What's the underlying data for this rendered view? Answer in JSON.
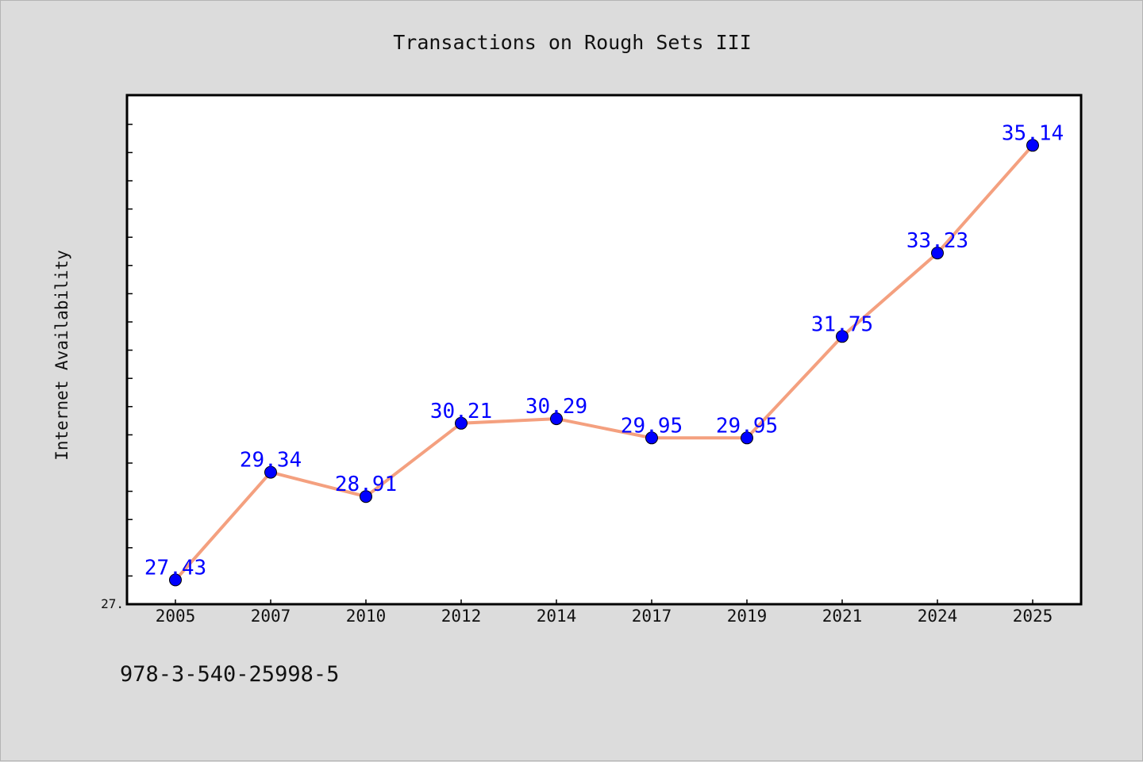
{
  "footer": {
    "isbn": "978-3-540-25998-5"
  },
  "colors": {
    "background": "#dcdcdc",
    "plot_background": "#ffffff",
    "line": "#f4a07f",
    "marker": "#0000ff",
    "data_label": "#0000ff"
  },
  "chart_data": {
    "type": "line",
    "title": "Transactions on Rough Sets III",
    "xlabel": "",
    "ylabel": "Internet Availability",
    "categories": [
      "2005",
      "2007",
      "2010",
      "2012",
      "2014",
      "2017",
      "2019",
      "2021",
      "2024",
      "2025"
    ],
    "series": [
      {
        "values": [
          27.43,
          29.34,
          28.91,
          30.21,
          30.29,
          29.95,
          29.95,
          31.75,
          33.23,
          35.14
        ],
        "labels": [
          "27.43",
          "29.34",
          "28.91",
          "30.21",
          "30.29",
          "29.95",
          "29.95",
          "31.75",
          "33.23",
          "35.14"
        ]
      }
    ],
    "ylim": [
      27,
      36.03
    ],
    "y_tick_labels": [
      "27."
    ],
    "grid": false,
    "legend": "none"
  }
}
